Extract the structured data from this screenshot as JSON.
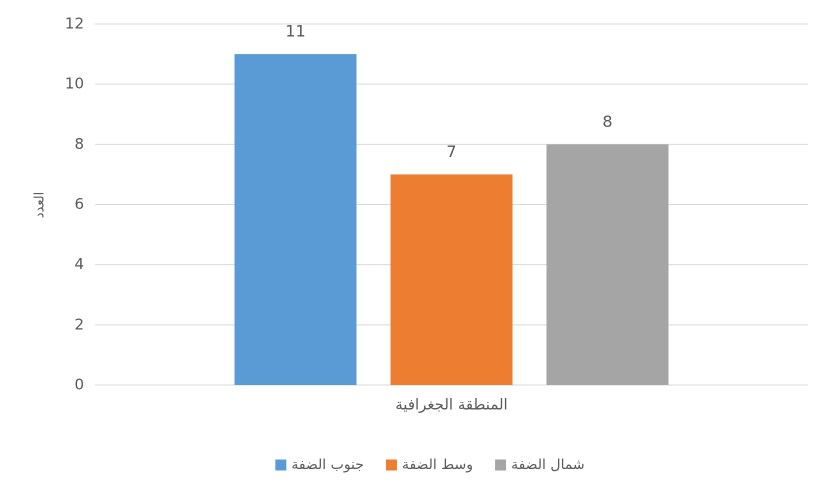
{
  "chart_data": {
    "type": "bar",
    "y_label": "العدد",
    "categories": [
      "المنطقة الجغرافية"
    ],
    "series": [
      {
        "name": "جنوب الضفة",
        "color": "#5b9bd5",
        "values": [
          11
        ]
      },
      {
        "name": "وسط الضفة",
        "color": "#ed7d31",
        "values": [
          7
        ]
      },
      {
        "name": "شمال الضفة",
        "color": "#a5a5a5",
        "values": [
          8
        ]
      }
    ],
    "ylim": [
      0,
      12
    ],
    "yticks": [
      0,
      2,
      4,
      6,
      8,
      10,
      12
    ],
    "grid": true,
    "legend": "bottom"
  }
}
